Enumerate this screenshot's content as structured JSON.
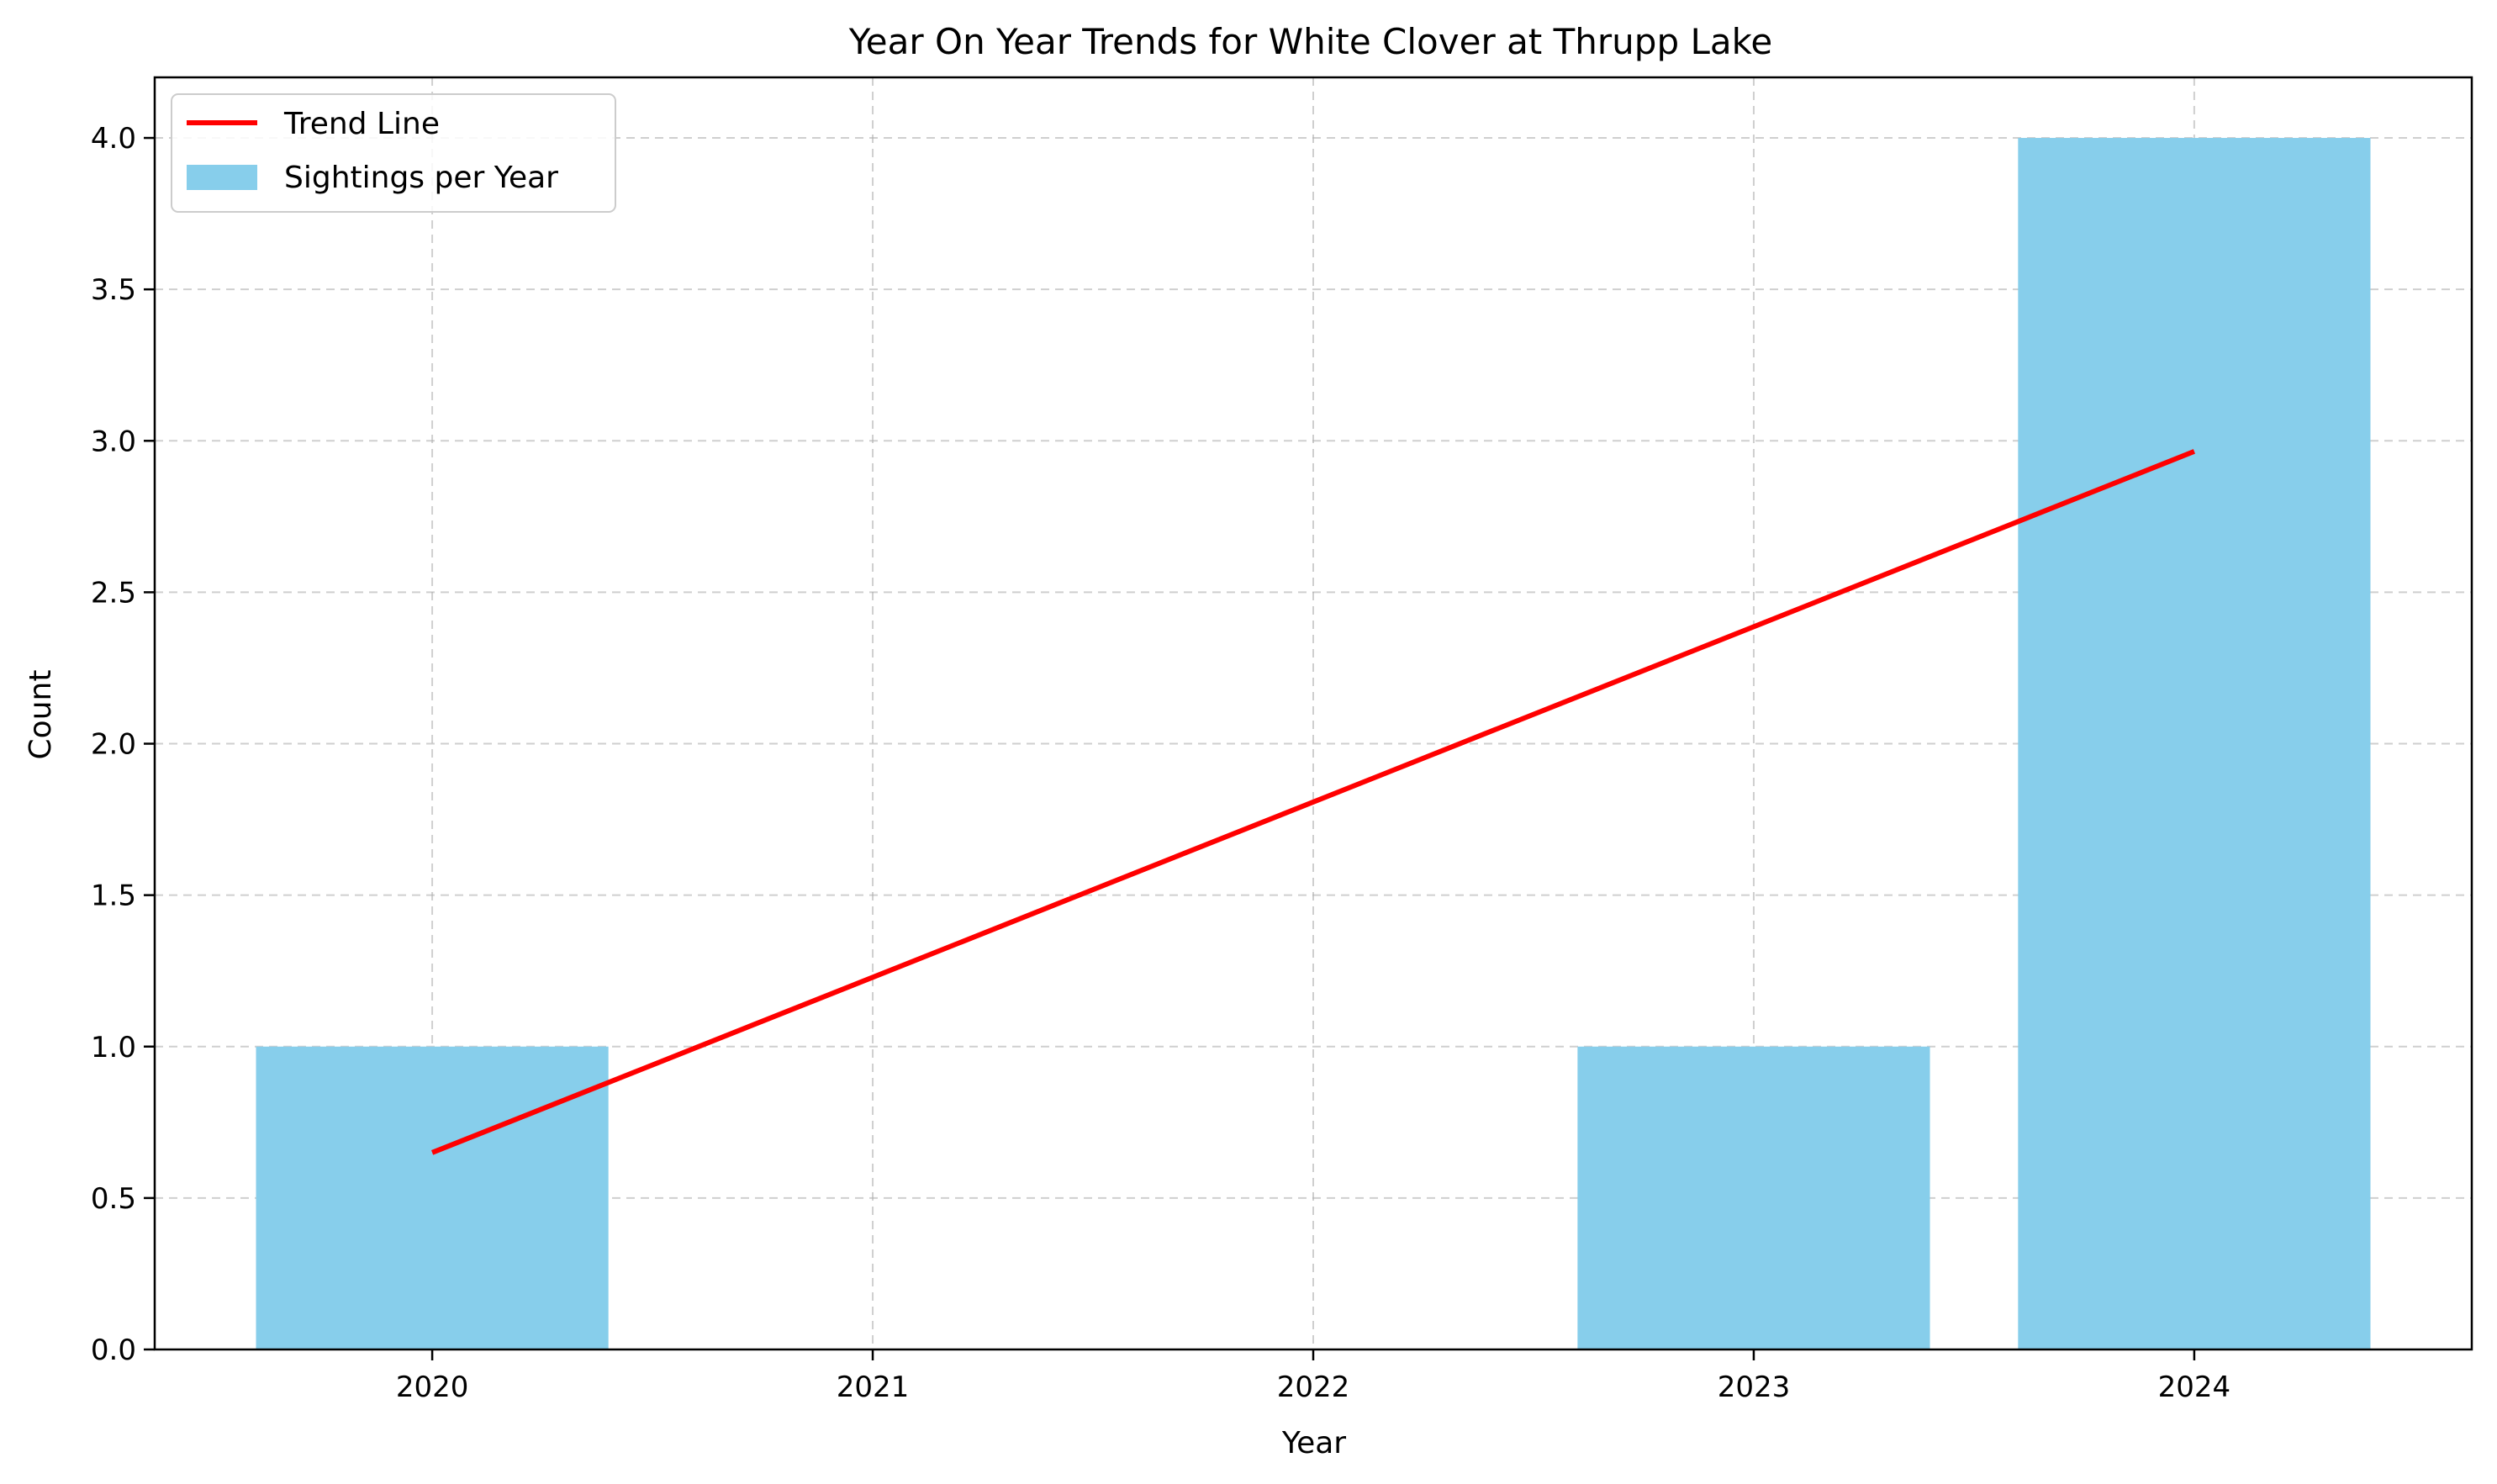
{
  "chart_data": {
    "type": "bar",
    "title": "Year On Year Trends for White Clover at Thrupp Lake",
    "xlabel": "Year",
    "ylabel": "Count",
    "categories": [
      "2020",
      "2021",
      "2022",
      "2023",
      "2024"
    ],
    "x": [
      2020,
      2021,
      2022,
      2023,
      2024
    ],
    "xlim": [
      2019.37,
      2024.63
    ],
    "ylim": [
      0,
      4.2
    ],
    "yticks": [
      0.0,
      0.5,
      1.0,
      1.5,
      2.0,
      2.5,
      3.0,
      3.5,
      4.0
    ],
    "ytick_labels": [
      "0.0",
      "0.5",
      "1.0",
      "1.5",
      "2.0",
      "2.5",
      "3.0",
      "3.5",
      "4.0"
    ],
    "grid": true,
    "legend_position": "top-left",
    "series": [
      {
        "name": "Sightings per Year",
        "type": "bar",
        "color": "#87ceeb",
        "values": [
          1,
          0,
          0,
          1,
          4
        ]
      },
      {
        "name": "Trend Line",
        "type": "line",
        "color": "#ff0000",
        "x": [
          2020,
          2024
        ],
        "values": [
          0.65,
          2.965
        ]
      }
    ]
  }
}
